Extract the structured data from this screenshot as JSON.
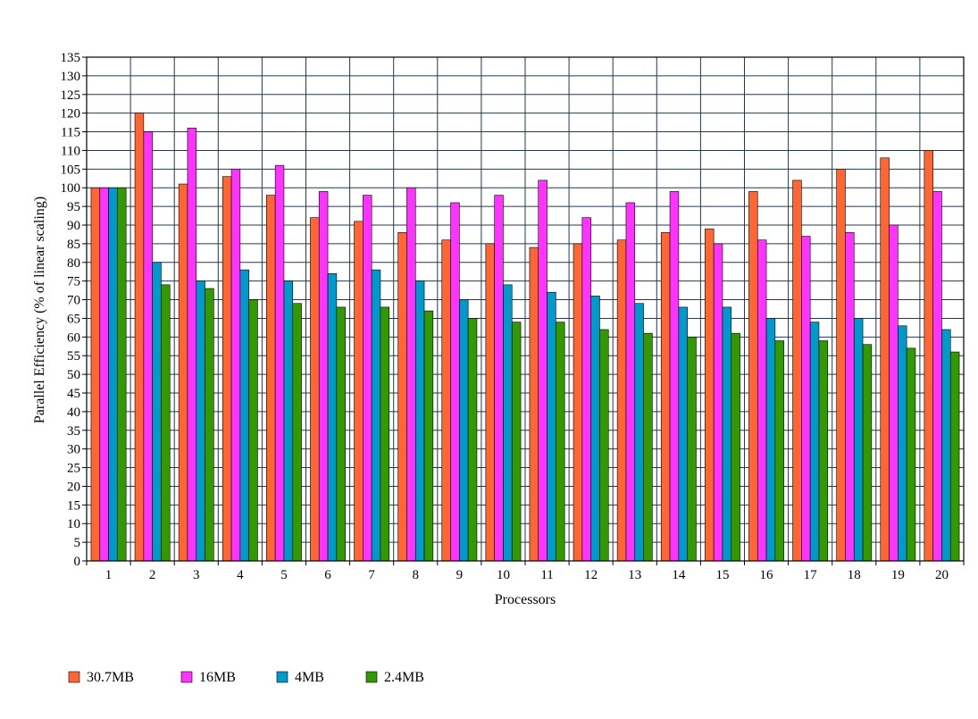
{
  "chart_data": {
    "type": "bar",
    "title": "",
    "xlabel": "Processors",
    "ylabel": "Parallel Efficiency (% of linear scaling)",
    "ylim": [
      0,
      135
    ],
    "ytick_step": 5,
    "grid": true,
    "legend_position": "bottom-left",
    "categories": [
      "1",
      "2",
      "3",
      "4",
      "5",
      "6",
      "7",
      "8",
      "9",
      "10",
      "11",
      "12",
      "13",
      "14",
      "15",
      "16",
      "17",
      "18",
      "19",
      "20"
    ],
    "series": [
      {
        "name": "30.7MB",
        "color": "#ff6633",
        "values": [
          100,
          120,
          101,
          103,
          98,
          92,
          91,
          88,
          86,
          85,
          84,
          85,
          86,
          88,
          89,
          99,
          102,
          105,
          108,
          110
        ]
      },
      {
        "name": "16MB",
        "color": "#ff33ff",
        "values": [
          100,
          115,
          116,
          105,
          106,
          99,
          98,
          100,
          96,
          98,
          102,
          92,
          96,
          99,
          85,
          86,
          87,
          88,
          90,
          99
        ]
      },
      {
        "name": "4MB",
        "color": "#0099cc",
        "values": [
          100,
          80,
          75,
          78,
          75,
          77,
          78,
          75,
          70,
          74,
          72,
          71,
          69,
          68,
          68,
          65,
          64,
          65,
          63,
          62
        ]
      },
      {
        "name": "2.4MB",
        "color": "#339900",
        "values": [
          100,
          74,
          73,
          70,
          69,
          68,
          68,
          67,
          65,
          64,
          64,
          62,
          61,
          60,
          61,
          59,
          59,
          58,
          57,
          56
        ]
      }
    ]
  }
}
